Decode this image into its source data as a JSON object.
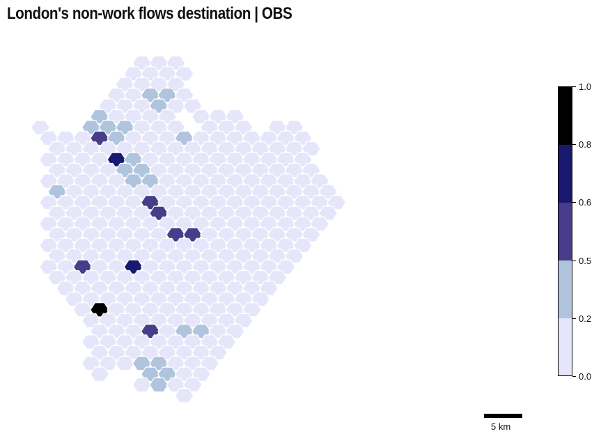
{
  "title": "London's non-work flows destination | OBS",
  "colorbar": {
    "ticks": [
      "0.0",
      "0.2",
      "0.5",
      "0.6",
      "0.8",
      "1.0"
    ],
    "bins": [
      {
        "min": 0.0,
        "max": 0.2,
        "color": "#e6e6fa"
      },
      {
        "min": 0.2,
        "max": 0.5,
        "color": "#b0c4de"
      },
      {
        "min": 0.5,
        "max": 0.6,
        "color": "#483d8b"
      },
      {
        "min": 0.6,
        "max": 0.8,
        "color": "#191970"
      },
      {
        "min": 0.8,
        "max": 1.0,
        "color": "#000000"
      }
    ]
  },
  "scale_bar": {
    "label": "5 km"
  },
  "hex_map": {
    "hex_count": 395,
    "class_counts": {
      "lavender": 285,
      "lightsteelblue": 93,
      "darkslateblue": 11,
      "midnightblue": 5,
      "black": 1
    }
  }
}
